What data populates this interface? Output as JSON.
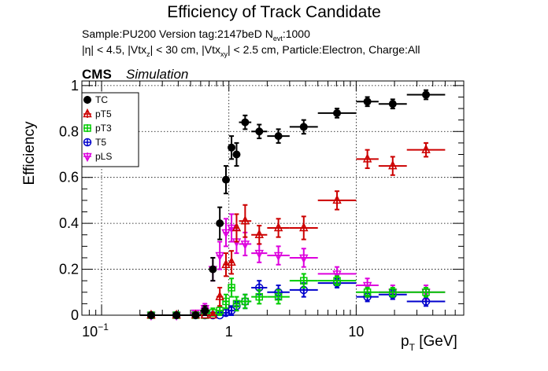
{
  "title": "Efficiency of Track Candidate",
  "info_line1": {
    "prefix": "Sample:PU200   Version tag:2147beD  N",
    "sub": "evt",
    "suffix": ":1000"
  },
  "info_line2": {
    "p1": "|η| < 4.5, |Vtx",
    "s1": "z",
    "p2": "| < 30 cm, |Vtx",
    "s2": "xy",
    "p3": "| < 2.5 cm, Particle:Electron, Charge:All"
  },
  "cms_label": "CMS",
  "simulation_label": "Simulation",
  "ylabel": "Efficiency",
  "xlabel": {
    "main": "p",
    "sub": "T",
    "unit": " [GeV]"
  },
  "chart_data": {
    "type": "scatter",
    "x_scale": "log",
    "xlim": [
      0.07,
      70
    ],
    "ylim": [
      0,
      1.02
    ],
    "grid": true,
    "legend_position": "top-left",
    "x_ticks": [
      {
        "value": 0.1,
        "base": "10",
        "exp": "−1"
      },
      {
        "value": 1,
        "label": "1"
      },
      {
        "value": 10,
        "label": "10"
      }
    ],
    "y_ticks": [
      0,
      0.2,
      0.4,
      0.6,
      0.8,
      1
    ],
    "y_tick_labels": [
      "0",
      "0.2",
      "0.4",
      "0.6",
      "0.8",
      "1"
    ],
    "bins": [
      [
        0.2,
        0.3
      ],
      [
        0.3,
        0.5
      ],
      [
        0.5,
        0.6
      ],
      [
        0.6,
        0.7
      ],
      [
        0.7,
        0.8
      ],
      [
        0.8,
        0.9
      ],
      [
        0.9,
        1.0
      ],
      [
        1.0,
        1.1
      ],
      [
        1.1,
        1.2
      ],
      [
        1.2,
        1.5
      ],
      [
        1.5,
        2.0
      ],
      [
        2.0,
        3.0
      ],
      [
        3.0,
        5.0
      ],
      [
        5.0,
        10.0
      ],
      [
        10.0,
        15.0
      ],
      [
        15.0,
        25.0
      ],
      [
        25.0,
        50.0
      ]
    ],
    "series": [
      {
        "name": "TC",
        "marker": "circle-filled",
        "color": "#000000",
        "values": [
          0.0,
          0.0,
          0.0,
          0.02,
          0.2,
          0.4,
          0.59,
          0.73,
          0.7,
          0.84,
          0.8,
          0.78,
          0.82,
          0.88,
          0.93,
          0.92,
          0.96
        ],
        "errors": [
          0.01,
          0.01,
          0.01,
          0.02,
          0.05,
          0.07,
          0.06,
          0.05,
          0.05,
          0.03,
          0.03,
          0.03,
          0.03,
          0.02,
          0.02,
          0.02,
          0.02
        ]
      },
      {
        "name": "pT5",
        "marker": "triangle-open",
        "color": "#cc0000",
        "values": [
          0.0,
          0.0,
          0.0,
          0.0,
          0.0,
          0.08,
          0.22,
          0.23,
          0.38,
          0.41,
          0.35,
          0.38,
          0.38,
          0.5,
          0.68,
          0.65,
          0.72
        ],
        "errors": [
          0.01,
          0.01,
          0.01,
          0.01,
          0.01,
          0.04,
          0.05,
          0.05,
          0.06,
          0.07,
          0.04,
          0.04,
          0.05,
          0.04,
          0.04,
          0.04,
          0.03
        ]
      },
      {
        "name": "pT3",
        "marker": "square-open",
        "color": "#00cc00",
        "values": [
          0.0,
          0.0,
          0.0,
          0.0,
          0.01,
          0.02,
          0.06,
          0.12,
          0.05,
          0.06,
          0.08,
          0.08,
          0.15,
          0.15,
          0.1,
          0.1,
          0.1
        ],
        "errors": [
          0.01,
          0.01,
          0.01,
          0.01,
          0.02,
          0.02,
          0.03,
          0.04,
          0.03,
          0.03,
          0.03,
          0.03,
          0.03,
          0.02,
          0.02,
          0.02,
          0.02
        ]
      },
      {
        "name": "T5",
        "marker": "circle-open",
        "color": "#0000cc",
        "values": [
          0.0,
          0.0,
          0.0,
          0.0,
          0.0,
          0.0,
          0.01,
          0.02,
          0.04,
          0.06,
          0.12,
          0.1,
          0.11,
          0.14,
          0.08,
          0.09,
          0.06
        ],
        "errors": [
          0.01,
          0.01,
          0.01,
          0.01,
          0.01,
          0.01,
          0.02,
          0.02,
          0.02,
          0.03,
          0.03,
          0.03,
          0.03,
          0.02,
          0.02,
          0.02,
          0.02
        ]
      },
      {
        "name": "pLS",
        "marker": "triangle-down-open",
        "color": "#dd00dd",
        "values": [
          0.0,
          0.0,
          0.01,
          0.03,
          0.2,
          0.26,
          0.36,
          0.38,
          0.32,
          0.31,
          0.27,
          0.26,
          0.25,
          0.18,
          0.13,
          0.1,
          0.1
        ],
        "errors": [
          0.01,
          0.01,
          0.01,
          0.02,
          0.05,
          0.06,
          0.06,
          0.06,
          0.05,
          0.05,
          0.04,
          0.04,
          0.04,
          0.03,
          0.03,
          0.03,
          0.03
        ]
      }
    ]
  }
}
